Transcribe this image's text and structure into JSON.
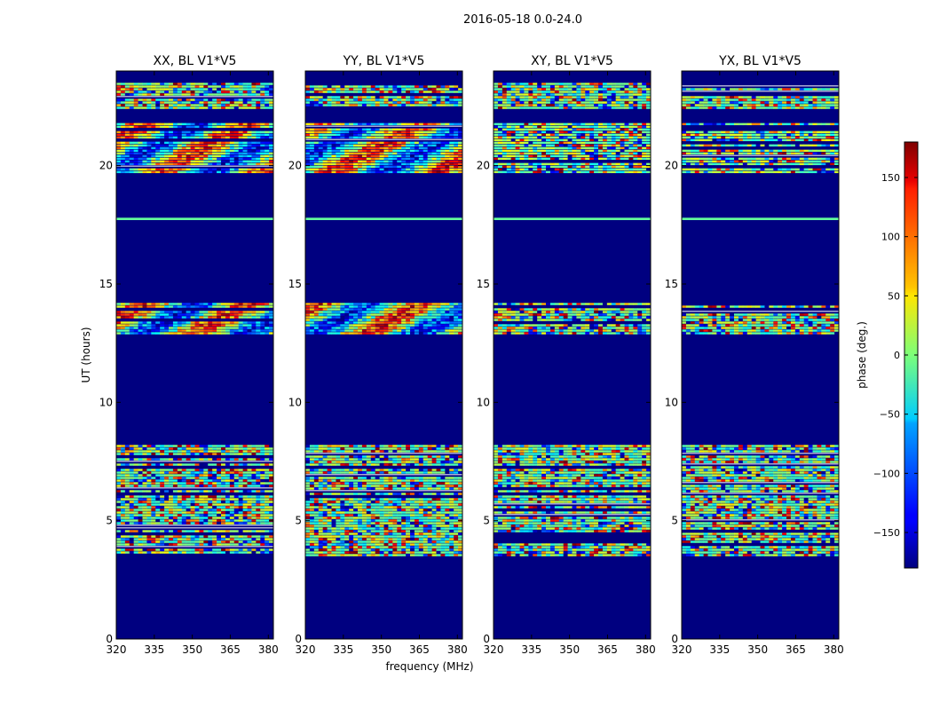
{
  "suptitle": "2016-05-18 0.0-24.0",
  "chart_data": {
    "type": "heatmap",
    "title": "2016-05-18 0.0-24.0",
    "xlabel": "frequency (MHz)",
    "ylabel": "UT (hours)",
    "xlim": [
      320,
      382
    ],
    "ylim": [
      0,
      24
    ],
    "x_ticks": [
      320,
      335,
      350,
      365,
      380
    ],
    "y_ticks": [
      0,
      5,
      10,
      15,
      20
    ],
    "colorbar": {
      "label": "phase (deg.)",
      "colormap": "jet",
      "range": [
        -180,
        180
      ],
      "ticks": [
        150,
        100,
        50,
        0,
        -50,
        -100,
        -150
      ],
      "tick_labels": [
        "150",
        "100",
        "50",
        "0",
        "−50",
        "−100",
        "−150"
      ]
    },
    "panels": [
      {
        "title": "XX, BL V1*V5"
      },
      {
        "title": "YY, BL V1*V5"
      },
      {
        "title": "XY, BL V1*V5"
      },
      {
        "title": "YX, BL V1*V5"
      }
    ],
    "flagged_background_phase_deg": -180,
    "data_blocks_ut_hours": [
      {
        "start": 3.5,
        "end": 8.2,
        "character": "noisy phase, many rows"
      },
      {
        "start": 12.9,
        "end": 14.2,
        "character": "noisy phase, bright band near 13.1 h in XX/YY"
      },
      {
        "start": 17.7,
        "end": 17.8,
        "character": "single line near 0 deg"
      },
      {
        "start": 19.7,
        "end": 21.8,
        "character": "noisy phase, strong structure in XX/YY"
      },
      {
        "start": 22.4,
        "end": 23.5,
        "character": "noisy phase"
      }
    ]
  }
}
